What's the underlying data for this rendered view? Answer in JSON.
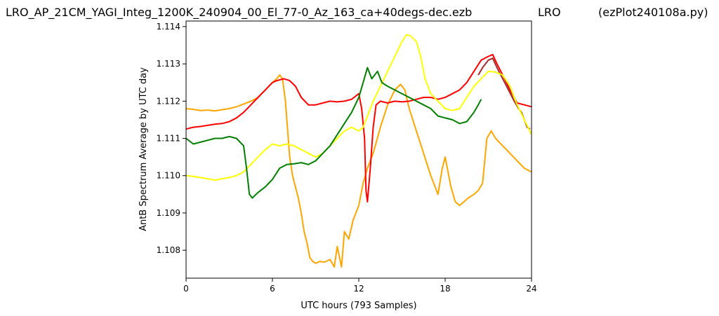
{
  "header": {
    "title_left": "LRO_AP_21CM_YAGI_Integ_1200K_240904_00_El_77-0_Az_163_ca+40degs-dec.ezb",
    "title_center": "LRO",
    "title_right": "(ezPlot240108a.py)"
  },
  "chart_data": {
    "type": "line",
    "title": "LRO_AP_21CM_YAGI_Integ_1200K_240904_00_El_77-0_Az_163_ca+40degs-dec.ezb",
    "xlabel": "UTC hours  (793 Samples)",
    "ylabel": "AntB Spectrum Average by UTC day",
    "xlim": [
      0,
      24
    ],
    "ylim": [
      1.10725,
      1.11415
    ],
    "xticks": [
      0,
      6,
      12,
      18,
      24
    ],
    "xtick_labels": [
      "0",
      "6",
      "12",
      "18",
      "24"
    ],
    "yticks": [
      1.108,
      1.109,
      1.11,
      1.111,
      1.112,
      1.113,
      1.114
    ],
    "ytick_labels": [
      "1.108",
      "1.109",
      "1.110",
      "1.111",
      "1.112",
      "1.113",
      "1.114"
    ],
    "grid": false,
    "series": [
      {
        "color": "#ffa500",
        "points": [
          [
            0,
            1.1118
          ],
          [
            0.5,
            1.11178
          ],
          [
            1,
            1.11175
          ],
          [
            1.5,
            1.11176
          ],
          [
            2,
            1.11174
          ],
          [
            2.5,
            1.11177
          ],
          [
            3,
            1.1118
          ],
          [
            3.5,
            1.11185
          ],
          [
            4,
            1.11192
          ],
          [
            4.5,
            1.112
          ],
          [
            5,
            1.1121
          ],
          [
            5.5,
            1.1123
          ],
          [
            6,
            1.1125
          ],
          [
            6.3,
            1.1126
          ],
          [
            6.5,
            1.1127
          ],
          [
            6.7,
            1.1126
          ],
          [
            6.9,
            1.112
          ],
          [
            7.0,
            1.1115
          ],
          [
            7.2,
            1.1105
          ],
          [
            7.4,
            1.11
          ],
          [
            7.6,
            1.1097
          ],
          [
            7.8,
            1.1094
          ],
          [
            8.0,
            1.109
          ],
          [
            8.2,
            1.1085
          ],
          [
            8.4,
            1.1082
          ],
          [
            8.6,
            1.1078
          ],
          [
            8.8,
            1.1077
          ],
          [
            9.0,
            1.10765
          ],
          [
            9.3,
            1.1077
          ],
          [
            9.6,
            1.10768
          ],
          [
            10.0,
            1.10775
          ],
          [
            10.3,
            1.10755
          ],
          [
            10.5,
            1.1081
          ],
          [
            10.8,
            1.10755
          ],
          [
            11.0,
            1.1085
          ],
          [
            11.3,
            1.1083
          ],
          [
            11.6,
            1.1088
          ],
          [
            12.0,
            1.1092
          ],
          [
            12.3,
            1.1098
          ],
          [
            12.6,
            1.1102
          ],
          [
            13.0,
            1.1106
          ],
          [
            13.5,
            1.1113
          ],
          [
            14.0,
            1.1119
          ],
          [
            14.5,
            1.1123
          ],
          [
            14.9,
            1.11245
          ],
          [
            15.2,
            1.1123
          ],
          [
            15.5,
            1.1118
          ],
          [
            16.0,
            1.1112
          ],
          [
            16.5,
            1.1106
          ],
          [
            17.0,
            1.11
          ],
          [
            17.5,
            1.1095
          ],
          [
            17.8,
            1.1102
          ],
          [
            18.0,
            1.1105
          ],
          [
            18.2,
            1.1101
          ],
          [
            18.4,
            1.1097
          ],
          [
            18.7,
            1.1093
          ],
          [
            19.0,
            1.1092
          ],
          [
            19.3,
            1.1093
          ],
          [
            19.6,
            1.1094
          ],
          [
            20.0,
            1.1095
          ],
          [
            20.3,
            1.1096
          ],
          [
            20.6,
            1.1098
          ],
          [
            20.9,
            1.111
          ],
          [
            21.2,
            1.1112
          ],
          [
            21.5,
            1.111
          ],
          [
            22.0,
            1.1108
          ],
          [
            22.5,
            1.1106
          ],
          [
            23.0,
            1.1104
          ],
          [
            23.5,
            1.1102
          ],
          [
            24.0,
            1.1101
          ]
        ]
      },
      {
        "color": "#ff0000",
        "points": [
          [
            0,
            1.11125
          ],
          [
            0.5,
            1.1113
          ],
          [
            1,
            1.11132
          ],
          [
            1.5,
            1.11135
          ],
          [
            2,
            1.11138
          ],
          [
            2.5,
            1.1114
          ],
          [
            3,
            1.11145
          ],
          [
            3.5,
            1.11155
          ],
          [
            4,
            1.1117
          ],
          [
            4.5,
            1.1119
          ],
          [
            5,
            1.1121
          ],
          [
            5.5,
            1.1123
          ],
          [
            6,
            1.1125
          ],
          [
            6.3,
            1.11255
          ],
          [
            6.8,
            1.1126
          ],
          [
            7.2,
            1.11255
          ],
          [
            7.6,
            1.1124
          ],
          [
            8.0,
            1.1121
          ],
          [
            8.5,
            1.1119
          ],
          [
            9.0,
            1.1119
          ],
          [
            9.5,
            1.11195
          ],
          [
            10.0,
            1.112
          ],
          [
            10.5,
            1.11198
          ],
          [
            11.0,
            1.112
          ],
          [
            11.5,
            1.11205
          ],
          [
            12.0,
            1.1122
          ],
          [
            12.2,
            1.1118
          ],
          [
            12.4,
            1.111
          ],
          [
            12.5,
            1.1096
          ],
          [
            12.6,
            1.1093
          ],
          [
            12.8,
            1.1102
          ],
          [
            13.0,
            1.1113
          ],
          [
            13.2,
            1.1119
          ],
          [
            13.5,
            1.112
          ],
          [
            14.0,
            1.11195
          ],
          [
            14.5,
            1.112
          ],
          [
            15.0,
            1.11198
          ],
          [
            15.5,
            1.112
          ],
          [
            16.0,
            1.11205
          ],
          [
            16.5,
            1.1121
          ],
          [
            17.0,
            1.1121
          ],
          [
            17.5,
            1.11205
          ],
          [
            18.0,
            1.1121
          ],
          [
            18.5,
            1.1122
          ],
          [
            19.0,
            1.1123
          ],
          [
            19.5,
            1.1125
          ],
          [
            20.0,
            1.1128
          ],
          [
            20.5,
            1.1131
          ],
          [
            21.0,
            1.1132
          ],
          [
            21.3,
            1.11325
          ],
          [
            21.6,
            1.113
          ],
          [
            22.0,
            1.1127
          ],
          [
            22.5,
            1.1123
          ],
          [
            23.0,
            1.11195
          ],
          [
            23.5,
            1.1119
          ],
          [
            24.0,
            1.11185
          ]
        ]
      },
      {
        "color": "#a52a2a",
        "points": [
          [
            20.3,
            1.1127
          ],
          [
            20.6,
            1.1129
          ],
          [
            21.0,
            1.1131
          ],
          [
            21.3,
            1.11315
          ],
          [
            21.6,
            1.1129
          ],
          [
            22.0,
            1.1126
          ],
          [
            22.4,
            1.1123
          ],
          [
            22.8,
            1.112
          ],
          [
            23.1,
            1.1118
          ],
          [
            23.3,
            1.1117
          ],
          [
            23.5,
            1.1115
          ],
          [
            23.7,
            1.1113
          ],
          [
            23.9,
            1.11125
          ]
        ]
      },
      {
        "color": "#ffff00",
        "points": [
          [
            0,
            1.11
          ],
          [
            0.5,
            1.10998
          ],
          [
            1,
            1.10995
          ],
          [
            1.5,
            1.10992
          ],
          [
            2,
            1.10988
          ],
          [
            2.5,
            1.10992
          ],
          [
            3,
            1.10995
          ],
          [
            3.5,
            1.11
          ],
          [
            4,
            1.1101
          ],
          [
            4.5,
            1.1103
          ],
          [
            5,
            1.1105
          ],
          [
            5.5,
            1.1107
          ],
          [
            6,
            1.11085
          ],
          [
            6.5,
            1.1108
          ],
          [
            7,
            1.11085
          ],
          [
            7.5,
            1.1108
          ],
          [
            8,
            1.1107
          ],
          [
            8.5,
            1.1106
          ],
          [
            9,
            1.1105
          ],
          [
            9.5,
            1.1106
          ],
          [
            10,
            1.1108
          ],
          [
            10.5,
            1.111
          ],
          [
            11,
            1.1112
          ],
          [
            11.5,
            1.1113
          ],
          [
            12,
            1.1112
          ],
          [
            12.3,
            1.1113
          ],
          [
            12.6,
            1.1116
          ],
          [
            13.0,
            1.112
          ],
          [
            13.5,
            1.1124
          ],
          [
            14.0,
            1.1128
          ],
          [
            14.5,
            1.1132
          ],
          [
            15.0,
            1.1136
          ],
          [
            15.3,
            1.11378
          ],
          [
            15.6,
            1.11375
          ],
          [
            16.0,
            1.1136
          ],
          [
            16.3,
            1.1132
          ],
          [
            16.6,
            1.1126
          ],
          [
            17.0,
            1.1122
          ],
          [
            17.5,
            1.112
          ],
          [
            18.0,
            1.1118
          ],
          [
            18.5,
            1.11175
          ],
          [
            19.0,
            1.1118
          ],
          [
            19.5,
            1.1121
          ],
          [
            20.0,
            1.1124
          ],
          [
            20.5,
            1.1126
          ],
          [
            21.0,
            1.1128
          ],
          [
            21.5,
            1.11278
          ],
          [
            22.0,
            1.1127
          ],
          [
            22.5,
            1.1124
          ],
          [
            23.0,
            1.1119
          ],
          [
            23.5,
            1.1115
          ],
          [
            24.0,
            1.1111
          ]
        ]
      },
      {
        "color": "#008000",
        "points": [
          [
            0,
            1.111
          ],
          [
            0.5,
            1.11085
          ],
          [
            1,
            1.1109
          ],
          [
            1.5,
            1.11095
          ],
          [
            2,
            1.111
          ],
          [
            2.5,
            1.111
          ],
          [
            3,
            1.11105
          ],
          [
            3.5,
            1.111
          ],
          [
            4,
            1.1108
          ],
          [
            4.2,
            1.1102
          ],
          [
            4.4,
            1.1095
          ],
          [
            4.6,
            1.1094
          ],
          [
            5.0,
            1.10955
          ],
          [
            5.5,
            1.1097
          ],
          [
            6.0,
            1.1099
          ],
          [
            6.5,
            1.1102
          ],
          [
            7.0,
            1.1103
          ],
          [
            7.5,
            1.11032
          ],
          [
            8.0,
            1.11035
          ],
          [
            8.5,
            1.1103
          ],
          [
            9.0,
            1.1104
          ],
          [
            9.5,
            1.1106
          ],
          [
            10.0,
            1.1108
          ],
          [
            10.5,
            1.1111
          ],
          [
            11.0,
            1.1114
          ],
          [
            11.5,
            1.1117
          ],
          [
            12.0,
            1.1121
          ],
          [
            12.3,
            1.1125
          ],
          [
            12.6,
            1.1129
          ],
          [
            12.9,
            1.1126
          ],
          [
            13.3,
            1.1128
          ],
          [
            13.6,
            1.1125
          ],
          [
            14.0,
            1.1124
          ],
          [
            14.5,
            1.1123
          ],
          [
            15.0,
            1.1122
          ],
          [
            15.5,
            1.1121
          ],
          [
            16.0,
            1.112
          ],
          [
            16.5,
            1.1119
          ],
          [
            17.0,
            1.1118
          ],
          [
            17.5,
            1.1116
          ],
          [
            18.0,
            1.11155
          ],
          [
            18.5,
            1.1115
          ],
          [
            19.0,
            1.1114
          ],
          [
            19.5,
            1.11145
          ],
          [
            20.0,
            1.1117
          ],
          [
            20.3,
            1.1119
          ],
          [
            20.5,
            1.11205
          ]
        ]
      }
    ]
  }
}
